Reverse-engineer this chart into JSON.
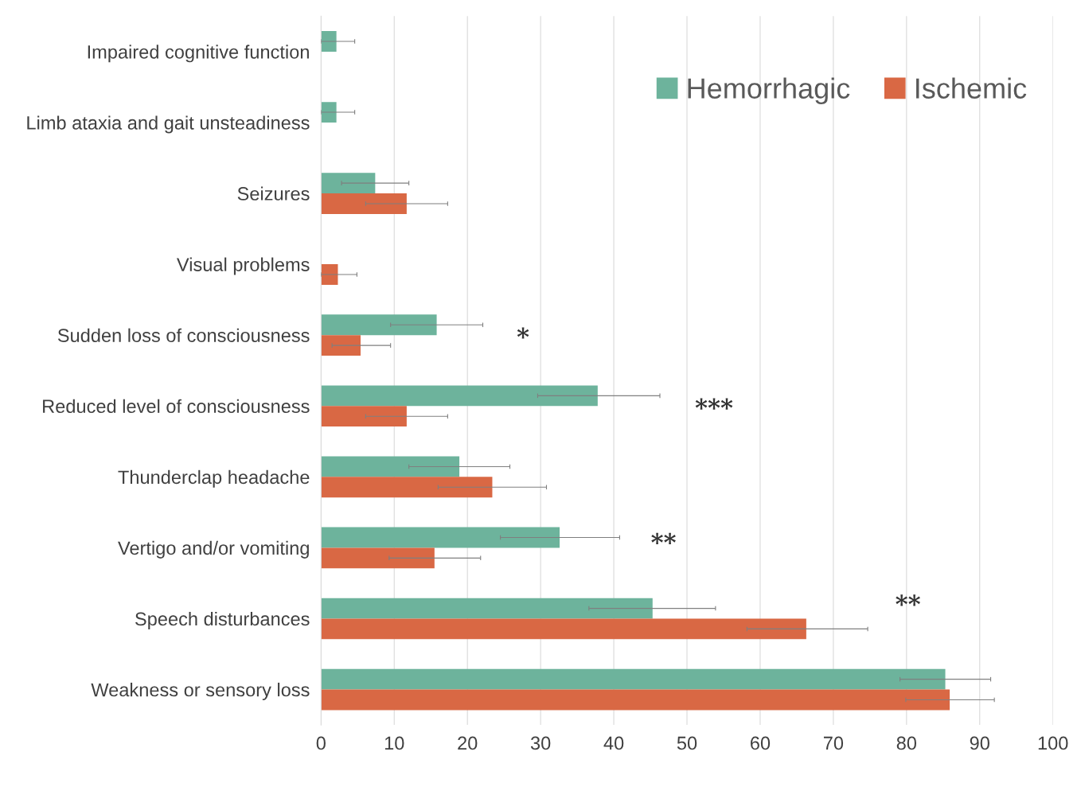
{
  "chart_data": {
    "type": "bar",
    "orientation": "horizontal",
    "categories": [
      "Impaired cognitive function",
      "Limb ataxia and gait unsteadiness",
      "Seizures",
      "Visual problems",
      "Sudden loss of consciousness",
      "Reduced level of consciousness",
      "Thunderclap headache",
      "Vertigo and/or vomiting",
      "Speech disturbances",
      "Weakness or sensory loss"
    ],
    "series": [
      {
        "name": "Hemorrhagic",
        "color": "#6db39c",
        "values": [
          2.1,
          2.1,
          7.4,
          null,
          15.8,
          37.8,
          18.9,
          32.6,
          45.3,
          85.3
        ],
        "errors": [
          [
            0,
            4.6
          ],
          [
            0,
            4.6
          ],
          [
            2.8,
            12.0
          ],
          null,
          [
            9.5,
            22.1
          ],
          [
            29.6,
            46.3
          ],
          [
            12.0,
            25.8
          ],
          [
            24.5,
            40.8
          ],
          [
            36.6,
            53.9
          ],
          [
            79.1,
            91.5
          ]
        ]
      },
      {
        "name": "Ischemic",
        "color": "#d96844",
        "values": [
          null,
          null,
          11.7,
          2.3,
          5.4,
          11.7,
          23.4,
          15.5,
          66.3,
          85.9
        ],
        "errors": [
          null,
          null,
          [
            6.1,
            17.3
          ],
          [
            0,
            4.9
          ],
          [
            1.5,
            9.5
          ],
          [
            6.1,
            17.3
          ],
          [
            16.0,
            30.8
          ],
          [
            9.3,
            21.8
          ],
          [
            58.2,
            74.7
          ],
          [
            79.9,
            92.0
          ]
        ]
      }
    ],
    "xlim": [
      0,
      100
    ],
    "xticks": [
      0,
      10,
      20,
      30,
      40,
      50,
      60,
      70,
      80,
      90,
      100
    ],
    "grid": "x",
    "legend": "top right",
    "annotations": [
      "*",
      "***",
      "**",
      "**"
    ]
  }
}
